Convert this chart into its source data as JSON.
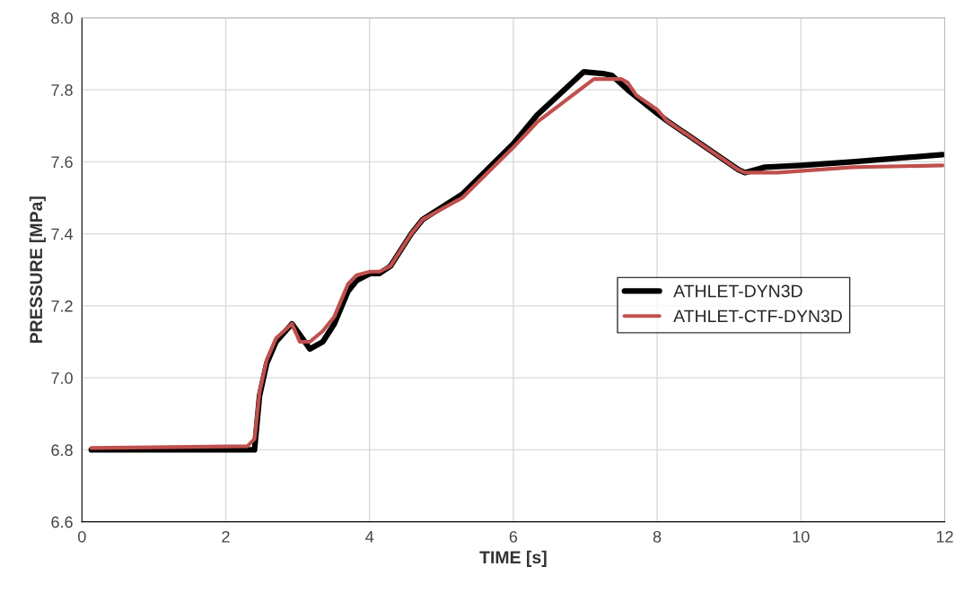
{
  "chart_data": {
    "type": "line",
    "xlabel": "TIME [s]",
    "ylabel": "PRESSURE [MPa]",
    "xlim": [
      0,
      12
    ],
    "xticks": [
      0,
      2,
      4,
      6,
      8,
      10,
      12
    ],
    "ylim": [
      6.6,
      8.0
    ],
    "yticks": [
      {
        "value": 6.6,
        "label": "6.6"
      },
      {
        "value": 6.8,
        "label": "6.8"
      },
      {
        "value": 7.0,
        "label": "7.0"
      },
      {
        "value": 7.2,
        "label": "7.2"
      },
      {
        "value": 7.4,
        "label": "7.4"
      },
      {
        "value": 7.6,
        "label": "7.6"
      },
      {
        "value": 7.8,
        "label": "7.8"
      },
      {
        "value": 8.0,
        "label": "8.0"
      }
    ],
    "grid": true,
    "legend": "right",
    "marker": "none",
    "line_style": "solid",
    "series": [
      {
        "name": "ATHLET-DYN3D",
        "color": "#000000",
        "x": [
          0.13,
          2.4,
          2.47,
          2.57,
          2.7,
          2.92,
          3.03,
          3.17,
          3.35,
          3.51,
          3.7,
          3.82,
          4.01,
          4.14,
          4.29,
          4.58,
          4.74,
          5.29,
          6.0,
          6.33,
          6.98,
          7.25,
          7.37,
          7.62,
          8.0,
          8.13,
          9.13,
          9.22,
          9.5,
          10.0,
          10.72,
          11.97
        ],
        "values": [
          6.8,
          6.8,
          6.95,
          7.04,
          7.1,
          7.15,
          7.12,
          7.08,
          7.1,
          7.15,
          7.24,
          7.27,
          7.29,
          7.29,
          7.31,
          7.4,
          7.44,
          7.51,
          7.65,
          7.73,
          7.85,
          7.845,
          7.84,
          7.795,
          7.735,
          7.715,
          7.578,
          7.57,
          7.585,
          7.59,
          7.6,
          7.62
        ]
      },
      {
        "name": "ATHLET-CTF-DYN3D",
        "color": "#c0504d",
        "x": [
          0.13,
          2.3,
          2.4,
          2.47,
          2.57,
          2.7,
          2.92,
          3.03,
          3.17,
          3.35,
          3.51,
          3.7,
          3.82,
          4.01,
          4.14,
          4.29,
          4.58,
          4.74,
          5.29,
          6.0,
          6.33,
          7.12,
          7.5,
          7.59,
          7.71,
          8.0,
          8.13,
          9.13,
          9.22,
          9.68,
          10.72,
          11.97
        ],
        "values": [
          6.805,
          6.81,
          6.83,
          6.96,
          7.05,
          7.11,
          7.15,
          7.1,
          7.1,
          7.13,
          7.17,
          7.26,
          7.285,
          7.295,
          7.295,
          7.31,
          7.4,
          7.44,
          7.5,
          7.64,
          7.71,
          7.83,
          7.83,
          7.82,
          7.785,
          7.745,
          7.715,
          7.578,
          7.57,
          7.57,
          7.585,
          7.59
        ]
      }
    ]
  }
}
